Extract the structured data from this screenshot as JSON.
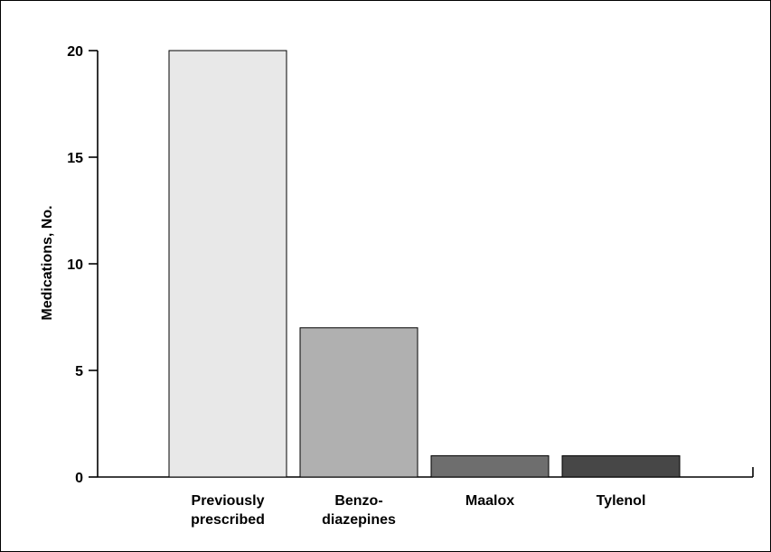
{
  "chart_data": {
    "type": "bar",
    "title": "",
    "xlabel": "",
    "ylabel": "Medications, No.",
    "categories": [
      [
        "Previously",
        "prescribed"
      ],
      [
        "Benzo-",
        "diazepines"
      ],
      [
        "Maalox"
      ],
      [
        "Tylenol"
      ]
    ],
    "values": [
      20,
      7,
      1,
      1
    ],
    "ylim": [
      0,
      20
    ],
    "yticks": [
      0,
      5,
      10,
      15,
      20
    ],
    "grid": false,
    "legend": "none",
    "bar_colors": [
      "#e8e8e8",
      "#b0b0b0",
      "#6e6e6e",
      "#474747"
    ],
    "bar_edge_color": "#000000"
  }
}
